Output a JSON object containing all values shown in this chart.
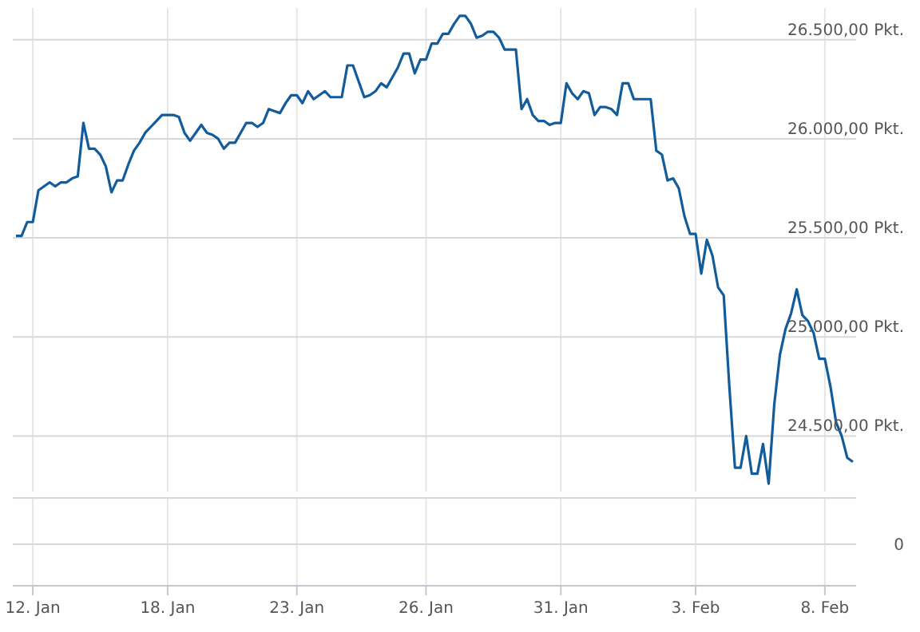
{
  "chart_data": {
    "type": "line",
    "color": "#135c9c",
    "line_style": "solid",
    "marker": "none",
    "grid": true,
    "annotations": [
      "0"
    ],
    "categories": [
      null,
      null,
      null,
      "12. Jan",
      null,
      null,
      null,
      null,
      null,
      null,
      null,
      null,
      null,
      null,
      null,
      null,
      null,
      null,
      null,
      null,
      null,
      null,
      null,
      null,
      null,
      null,
      null,
      "18. Jan",
      null,
      null,
      null,
      null,
      null,
      null,
      null,
      null,
      null,
      null,
      null,
      null,
      null,
      null,
      null,
      null,
      null,
      null,
      null,
      null,
      null,
      null,
      "23. Jan",
      null,
      null,
      null,
      null,
      null,
      null,
      null,
      null,
      null,
      null,
      null,
      null,
      null,
      null,
      null,
      null,
      null,
      null,
      null,
      null,
      null,
      null,
      "26. Jan",
      null,
      null,
      null,
      null,
      null,
      null,
      null,
      null,
      null,
      null,
      null,
      null,
      null,
      null,
      null,
      null,
      null,
      null,
      null,
      null,
      null,
      null,
      null,
      "31. Jan",
      null,
      null,
      null,
      null,
      null,
      null,
      null,
      null,
      null,
      null,
      null,
      null,
      null,
      null,
      null,
      null,
      null,
      null,
      null,
      null,
      null,
      null,
      null,
      "3. Feb",
      null,
      null,
      null,
      null,
      null,
      null,
      null,
      null,
      null,
      null,
      null,
      null,
      null,
      null,
      null,
      null,
      null,
      null,
      null,
      null,
      null,
      null,
      "8. Feb",
      null,
      null,
      null,
      null,
      null
    ],
    "values": [
      25510,
      25510,
      25580,
      25580,
      25740,
      25760,
      25780,
      25760,
      25780,
      25780,
      25800,
      25810,
      26080,
      25950,
      25950,
      25920,
      25860,
      25730,
      25790,
      25790,
      25870,
      25940,
      25980,
      26030,
      26060,
      26090,
      26120,
      26120,
      26120,
      26110,
      26030,
      25990,
      26030,
      26070,
      26030,
      26020,
      26000,
      25950,
      25980,
      25980,
      26030,
      26080,
      26080,
      26060,
      26080,
      26150,
      26140,
      26130,
      26180,
      26220,
      26220,
      26180,
      26240,
      26200,
      26220,
      26240,
      26210,
      26210,
      26210,
      26370,
      26370,
      26290,
      26210,
      26220,
      26240,
      26280,
      26260,
      26310,
      26360,
      26430,
      26430,
      26330,
      26400,
      26400,
      26480,
      26480,
      26530,
      26530,
      26580,
      26620,
      26620,
      26580,
      26510,
      26520,
      26540,
      26540,
      26510,
      26450,
      26450,
      26450,
      26150,
      26200,
      26120,
      26090,
      26090,
      26070,
      26080,
      26080,
      26280,
      26230,
      26200,
      26240,
      26230,
      26120,
      26160,
      26160,
      26150,
      26120,
      26280,
      26280,
      26200,
      26200,
      26200,
      26200,
      25940,
      25920,
      25790,
      25800,
      25750,
      25610,
      25520,
      25520,
      25320,
      25490,
      25410,
      25250,
      25210,
      24750,
      24340,
      24340,
      24500,
      24310,
      24310,
      24460,
      24260,
      24660,
      24910,
      25040,
      25120,
      25240,
      25110,
      25080,
      25020,
      24890,
      24890,
      24750,
      24570,
      24500,
      24390,
      24370
    ],
    "ylim": [
      24220,
      26660
    ],
    "yticks": [
      {
        "value": 24500,
        "label": "24.500,00 Pkt."
      },
      {
        "value": 25000,
        "label": "25.000,00 Pkt."
      },
      {
        "value": 25500,
        "label": "25.500,00 Pkt."
      },
      {
        "value": 26000,
        "label": "26.000,00 Pkt."
      },
      {
        "value": 26500,
        "label": "26.500,00 Pkt."
      }
    ]
  }
}
